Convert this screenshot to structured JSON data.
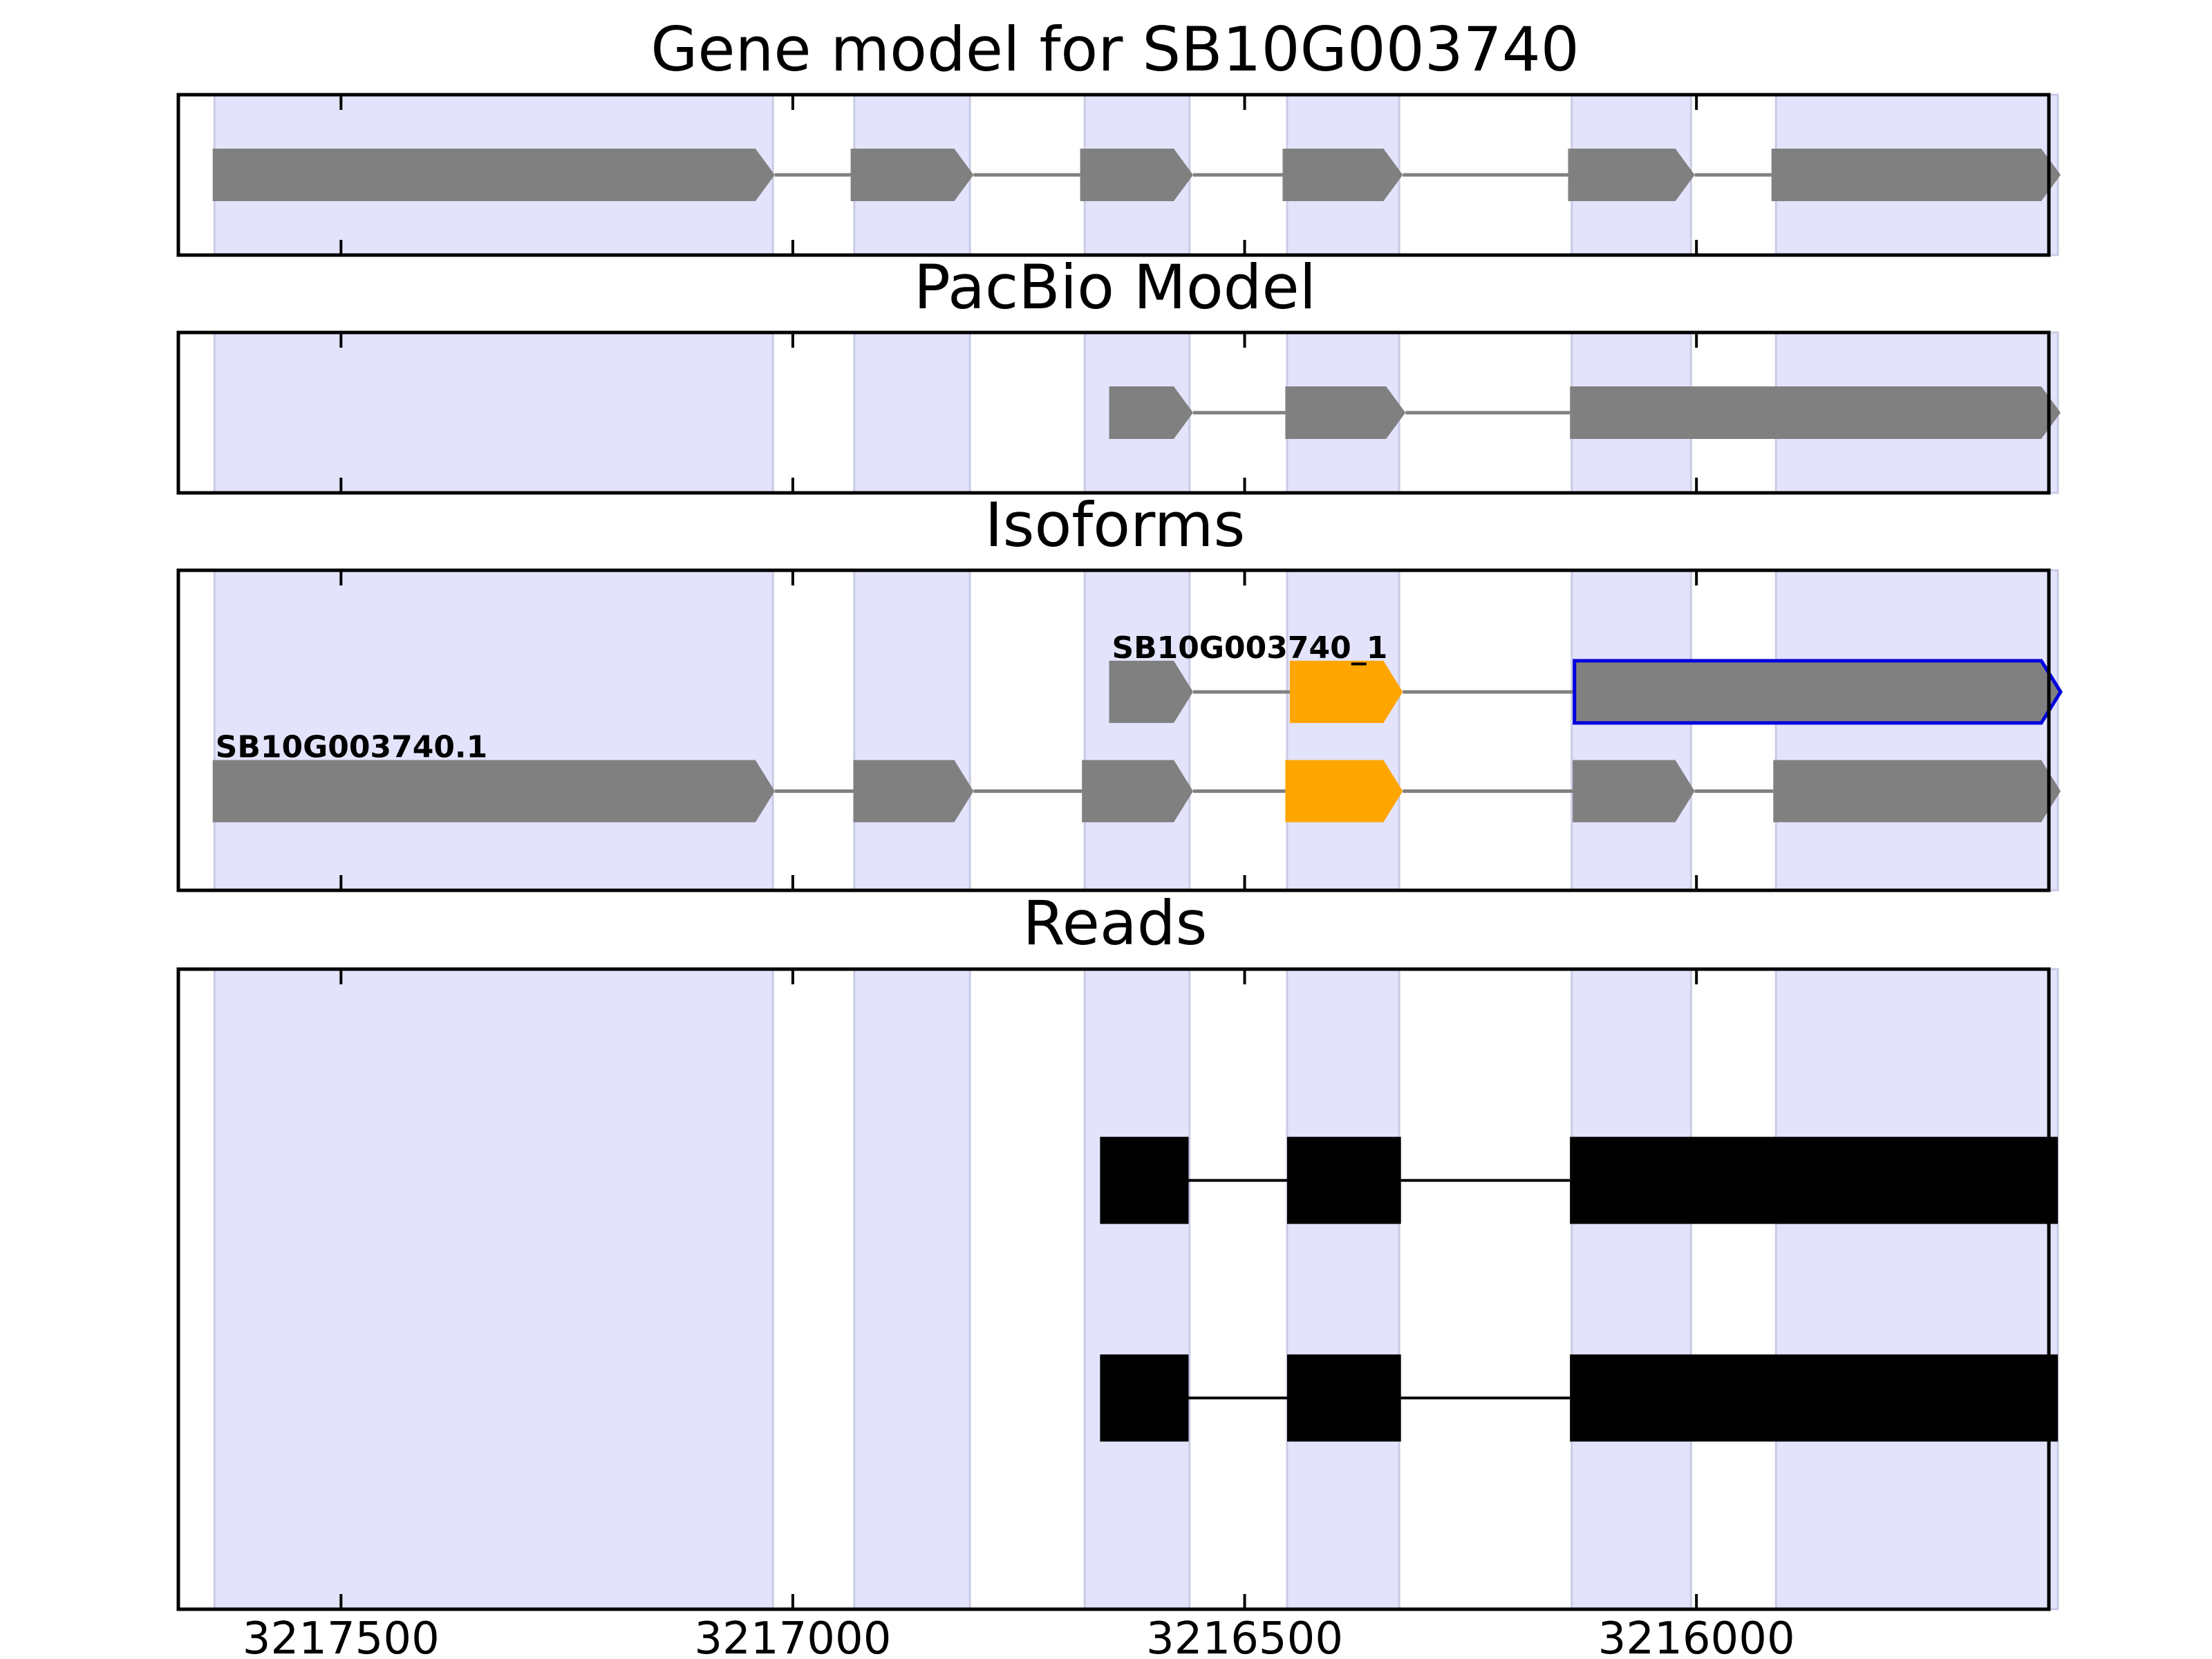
{
  "chart_data": {
    "type": "gene-structure",
    "x_axis": {
      "reversed": true,
      "xlim": [
        3217680,
        3215610
      ],
      "ticks": [
        {
          "value": 3217500,
          "label": "3217500"
        },
        {
          "value": 3217000,
          "label": "3217000"
        },
        {
          "value": 3216500,
          "label": "3216500"
        },
        {
          "value": 3216000,
          "label": "3216000"
        }
      ]
    },
    "colors": {
      "exon_shade": "#e3e3fc",
      "exon_shade_edge": "#c9cbe6",
      "exon": "#808080",
      "highlight_exon": "#ffa500",
      "selected_outline": "#0000dd",
      "read": "#000000",
      "intron": "#808080",
      "frame": "#000000"
    },
    "shaded_exon_regions": [
      [
        3217640,
        3217022
      ],
      [
        3216932,
        3216804
      ],
      [
        3216677,
        3216561
      ],
      [
        3216453,
        3216329
      ],
      [
        3216138,
        3216006
      ],
      [
        3215912,
        3215600
      ]
    ],
    "panels": [
      {
        "key": "gene_model",
        "title": "Gene model for SB10G003740",
        "transcripts": [
          {
            "label": "",
            "row": 0.5,
            "exons": [
              {
                "start": 3217642,
                "end": 3217020,
                "color": "exon"
              },
              {
                "start": 3216936,
                "end": 3216800,
                "color": "exon"
              },
              {
                "start": 3216682,
                "end": 3216557,
                "color": "exon"
              },
              {
                "start": 3216458,
                "end": 3216325,
                "color": "exon"
              },
              {
                "start": 3216142,
                "end": 3216002,
                "color": "exon"
              },
              {
                "start": 3215917,
                "end": 3215597,
                "color": "exon"
              }
            ]
          }
        ]
      },
      {
        "key": "pacbio_model",
        "title": "PacBio Model",
        "transcripts": [
          {
            "label": "",
            "row": 0.5,
            "exons": [
              {
                "start": 3216650,
                "end": 3216557,
                "color": "exon"
              },
              {
                "start": 3216455,
                "end": 3216322,
                "color": "exon"
              },
              {
                "start": 3216140,
                "end": 3215597,
                "color": "exon"
              }
            ]
          }
        ]
      },
      {
        "key": "isoforms",
        "title": "Isoforms",
        "transcripts": [
          {
            "label": "SB10G003740_1",
            "row": 0.62,
            "exons": [
              {
                "start": 3216650,
                "end": 3216557,
                "color": "exon"
              },
              {
                "start": 3216450,
                "end": 3216325,
                "color": "highlight_exon"
              },
              {
                "start": 3216135,
                "end": 3215597,
                "color": "exon",
                "outlined": true
              }
            ]
          },
          {
            "label": "SB10G003740.1",
            "row": 0.31,
            "exons": [
              {
                "start": 3217642,
                "end": 3217020,
                "color": "exon"
              },
              {
                "start": 3216933,
                "end": 3216800,
                "color": "exon"
              },
              {
                "start": 3216680,
                "end": 3216557,
                "color": "exon"
              },
              {
                "start": 3216455,
                "end": 3216325,
                "color": "highlight_exon"
              },
              {
                "start": 3216137,
                "end": 3216002,
                "color": "exon"
              },
              {
                "start": 3215915,
                "end": 3215597,
                "color": "exon"
              }
            ]
          }
        ]
      },
      {
        "key": "reads",
        "title": "Reads",
        "reads": [
          {
            "row": 0.67,
            "blocks": [
              [
                3216660,
                3216562
              ],
              [
                3216453,
                3216327
              ],
              [
                3216140,
                3215600
              ]
            ]
          },
          {
            "row": 0.33,
            "blocks": [
              [
                3216660,
                3216562
              ],
              [
                3216453,
                3216327
              ],
              [
                3216140,
                3215600
              ]
            ]
          }
        ]
      }
    ]
  }
}
